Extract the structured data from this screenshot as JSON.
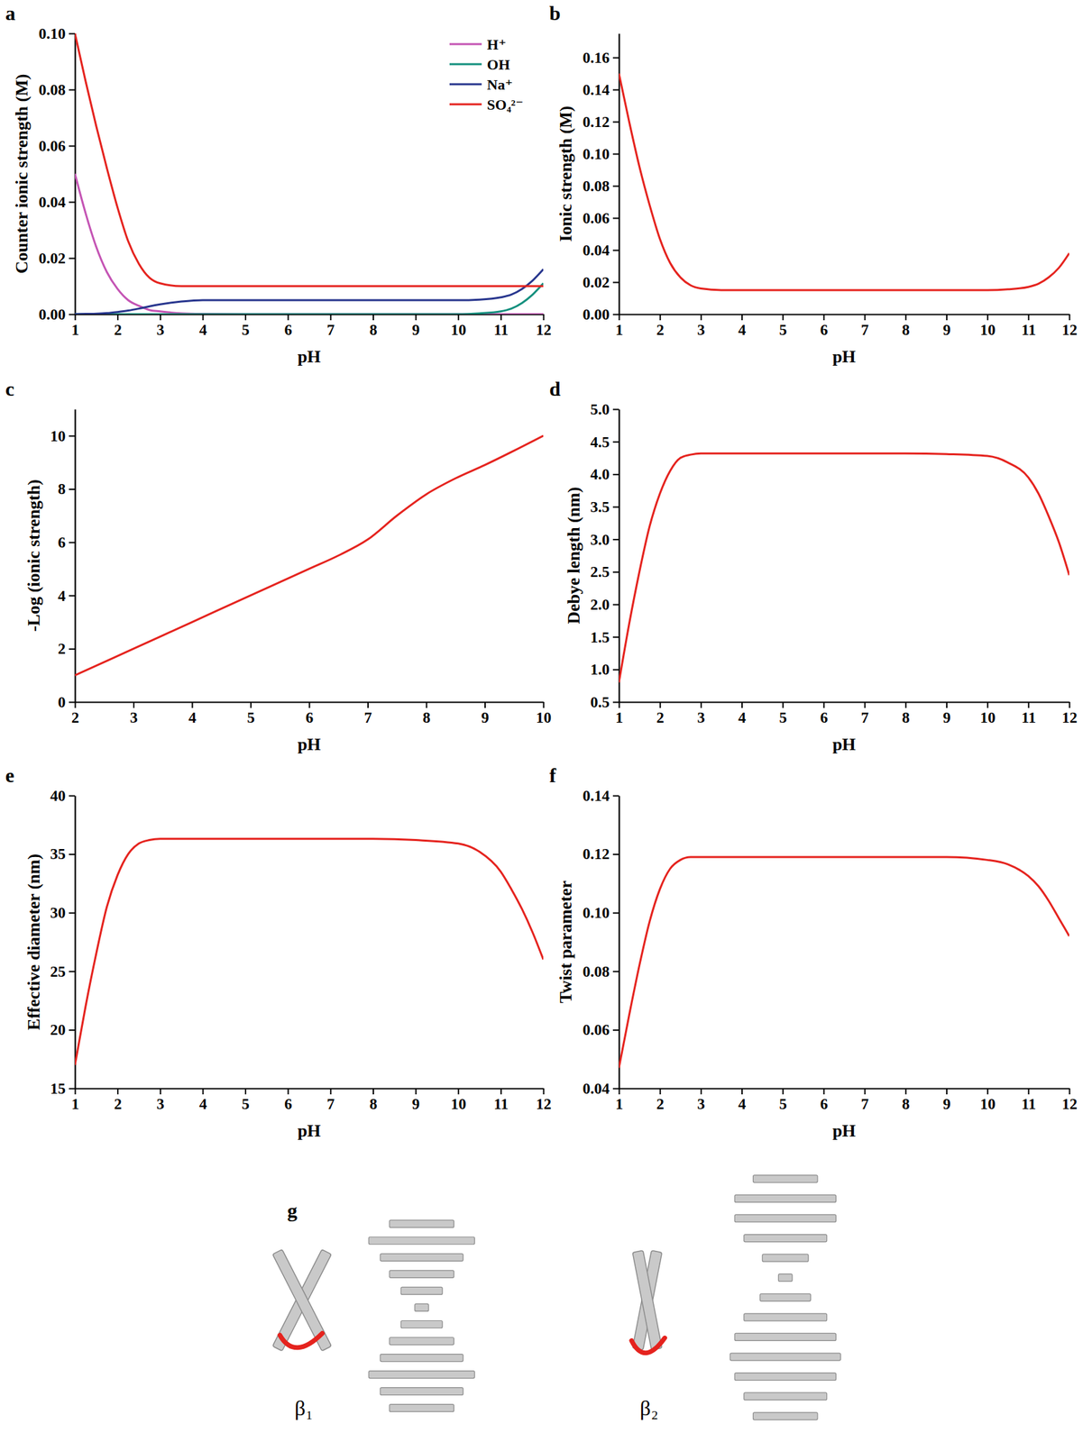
{
  "chart_data": [
    {
      "panel": "a",
      "type": "line",
      "xlabel": "pH",
      "ylabel": "Counter ionic strength (M)",
      "x": [
        1,
        1.25,
        1.5,
        1.75,
        2,
        2.25,
        2.5,
        2.75,
        3,
        3.5,
        4,
        5,
        6,
        7,
        8,
        9,
        10,
        10.5,
        11,
        11.25,
        11.5,
        11.75,
        12
      ],
      "xlim": [
        1,
        12
      ],
      "xticks": [
        1,
        2,
        3,
        4,
        5,
        6,
        7,
        8,
        9,
        10,
        11,
        12
      ],
      "ylim": [
        0,
        0.1
      ],
      "yticks": [
        {
          "value": 0,
          "label": "0.00"
        },
        0.02,
        0.04,
        0.06,
        0.08,
        {
          "value": 0.1,
          "label": "0.10"
        }
      ],
      "legend": "upper right",
      "series": [
        {
          "name": "H⁺",
          "color": "#c454b4",
          "values": [
            0.05,
            0.036,
            0.024,
            0.015,
            0.009,
            0.005,
            0.003,
            0.0015,
            0.001,
            0.0003,
            0.0001,
            0,
            0,
            0,
            0,
            0,
            0,
            0,
            0,
            0,
            0,
            0,
            0
          ]
        },
        {
          "name": "OH",
          "color": "#14907e",
          "values": [
            0,
            0,
            0,
            0,
            0,
            0,
            0,
            0,
            0,
            0,
            0,
            0,
            0,
            0,
            0,
            0,
            0,
            0.0003,
            0.001,
            0.002,
            0.004,
            0.007,
            0.011
          ]
        },
        {
          "name": "Na⁺",
          "color": "#28368e",
          "values": [
            0,
            0.0001,
            0.0002,
            0.0004,
            0.0008,
            0.0013,
            0.002,
            0.0028,
            0.0035,
            0.0045,
            0.005,
            0.005,
            0.005,
            0.005,
            0.005,
            0.005,
            0.005,
            0.0052,
            0.006,
            0.007,
            0.009,
            0.012,
            0.016
          ]
        },
        {
          "name": "SO₄²⁻",
          "color": "#e5231e",
          "values": [
            0.1,
            0.083,
            0.067,
            0.052,
            0.038,
            0.026,
            0.018,
            0.013,
            0.011,
            0.01,
            0.01,
            0.01,
            0.01,
            0.01,
            0.01,
            0.01,
            0.01,
            0.01,
            0.01,
            0.01,
            0.01,
            0.01,
            0.01
          ]
        }
      ]
    },
    {
      "panel": "b",
      "type": "line",
      "xlabel": "pH",
      "ylabel": "Ionic strength (M)",
      "x": [
        1,
        1.25,
        1.5,
        1.75,
        2,
        2.25,
        2.5,
        2.75,
        3,
        3.5,
        4,
        5,
        6,
        7,
        8,
        9,
        10,
        10.5,
        11,
        11.25,
        11.5,
        11.75,
        12
      ],
      "xlim": [
        1,
        12
      ],
      "xticks": [
        1,
        2,
        3,
        4,
        5,
        6,
        7,
        8,
        9,
        10,
        11,
        12
      ],
      "ylim": [
        0,
        0.175
      ],
      "yticks": [
        {
          "value": 0,
          "label": "0.00"
        },
        0.02,
        0.04,
        0.06,
        0.08,
        {
          "value": 0.1,
          "label": "0.10"
        },
        0.12,
        0.14,
        0.16
      ],
      "series": [
        {
          "color": "#e5231e",
          "values": [
            0.15,
            0.12,
            0.092,
            0.068,
            0.047,
            0.032,
            0.023,
            0.018,
            0.016,
            0.015,
            0.015,
            0.015,
            0.015,
            0.015,
            0.015,
            0.015,
            0.015,
            0.0155,
            0.017,
            0.019,
            0.023,
            0.029,
            0.038
          ]
        }
      ]
    },
    {
      "panel": "c",
      "type": "line",
      "xlabel": "pH",
      "ylabel": "-Log (ionic strength)",
      "x": [
        2,
        3,
        4,
        5,
        6,
        6.5,
        7,
        7.5,
        8,
        8.5,
        9,
        10
      ],
      "xlim": [
        2,
        10
      ],
      "xticks": [
        2,
        3,
        4,
        5,
        6,
        7,
        8,
        9,
        10
      ],
      "ylim": [
        0,
        11
      ],
      "yticks": [
        0,
        2,
        4,
        6,
        8,
        10
      ],
      "series": [
        {
          "color": "#e5231e",
          "values": [
            1,
            2,
            3,
            4,
            5,
            5.5,
            6.1,
            7,
            7.8,
            8.4,
            8.9,
            10
          ]
        }
      ]
    },
    {
      "panel": "d",
      "type": "line",
      "xlabel": "pH",
      "ylabel": "Debye length (nm)",
      "x": [
        1,
        1.25,
        1.5,
        1.75,
        2,
        2.25,
        2.5,
        2.75,
        3,
        3.5,
        4,
        5,
        6,
        7,
        8,
        9,
        10,
        10.5,
        11,
        11.25,
        11.5,
        11.75,
        12
      ],
      "xlim": [
        1,
        12
      ],
      "xticks": [
        1,
        2,
        3,
        4,
        5,
        6,
        7,
        8,
        9,
        10,
        11,
        12
      ],
      "ylim": [
        0.5,
        5
      ],
      "yticks": [
        0.5,
        {
          "value": 1,
          "label": "1.0"
        },
        1.5,
        {
          "value": 2,
          "label": "2.0"
        },
        2.5,
        {
          "value": 3,
          "label": "3.0"
        },
        3.5,
        {
          "value": 4,
          "label": "4.0"
        },
        4.5,
        {
          "value": 5,
          "label": "5.0"
        }
      ],
      "series": [
        {
          "color": "#e5231e",
          "values": [
            0.8,
            1.7,
            2.5,
            3.2,
            3.7,
            4.05,
            4.25,
            4.3,
            4.32,
            4.32,
            4.32,
            4.32,
            4.32,
            4.32,
            4.32,
            4.31,
            4.28,
            4.18,
            3.95,
            3.7,
            3.35,
            2.95,
            2.45
          ]
        }
      ]
    },
    {
      "panel": "e",
      "type": "line",
      "xlabel": "pH",
      "ylabel": "Effective diameter (nm)",
      "x": [
        1,
        1.25,
        1.5,
        1.75,
        2,
        2.25,
        2.5,
        2.75,
        3,
        3.5,
        4,
        5,
        6,
        7,
        8,
        9,
        10,
        10.5,
        11,
        11.25,
        11.5,
        11.75,
        12
      ],
      "xlim": [
        1,
        12
      ],
      "xticks": [
        1,
        2,
        3,
        4,
        5,
        6,
        7,
        8,
        9,
        10,
        11,
        12
      ],
      "ylim": [
        15,
        40
      ],
      "yticks": [
        15,
        20,
        25,
        30,
        35,
        40
      ],
      "series": [
        {
          "color": "#e5231e",
          "values": [
            17.0,
            22.0,
            26.5,
            30.5,
            33.2,
            35.0,
            35.9,
            36.2,
            36.3,
            36.3,
            36.3,
            36.3,
            36.3,
            36.3,
            36.3,
            36.2,
            35.9,
            35.2,
            33.5,
            32.0,
            30.3,
            28.3,
            26.0
          ]
        }
      ]
    },
    {
      "panel": "f",
      "type": "line",
      "xlabel": "pH",
      "ylabel": "Twist parameter",
      "x": [
        1,
        1.25,
        1.5,
        1.75,
        2,
        2.25,
        2.5,
        2.75,
        3,
        3.5,
        4,
        5,
        6,
        7,
        8,
        9,
        10,
        10.5,
        11,
        11.25,
        11.5,
        11.75,
        12
      ],
      "xlim": [
        1,
        12
      ],
      "xticks": [
        1,
        2,
        3,
        4,
        5,
        6,
        7,
        8,
        9,
        10,
        11,
        12
      ],
      "ylim": [
        0.04,
        0.14
      ],
      "yticks": [
        0.04,
        0.06,
        0.08,
        {
          "value": 0.1,
          "label": "0.10"
        },
        0.12,
        0.14
      ],
      "series": [
        {
          "color": "#e5231e",
          "values": [
            0.047,
            0.065,
            0.082,
            0.097,
            0.108,
            0.115,
            0.118,
            0.119,
            0.119,
            0.119,
            0.119,
            0.119,
            0.119,
            0.119,
            0.119,
            0.119,
            0.118,
            0.1165,
            0.1125,
            0.109,
            0.104,
            0.098,
            0.092
          ]
        }
      ]
    }
  ],
  "diagram": {
    "panel": "g",
    "labels": [
      "β₁",
      "β₂"
    ]
  }
}
